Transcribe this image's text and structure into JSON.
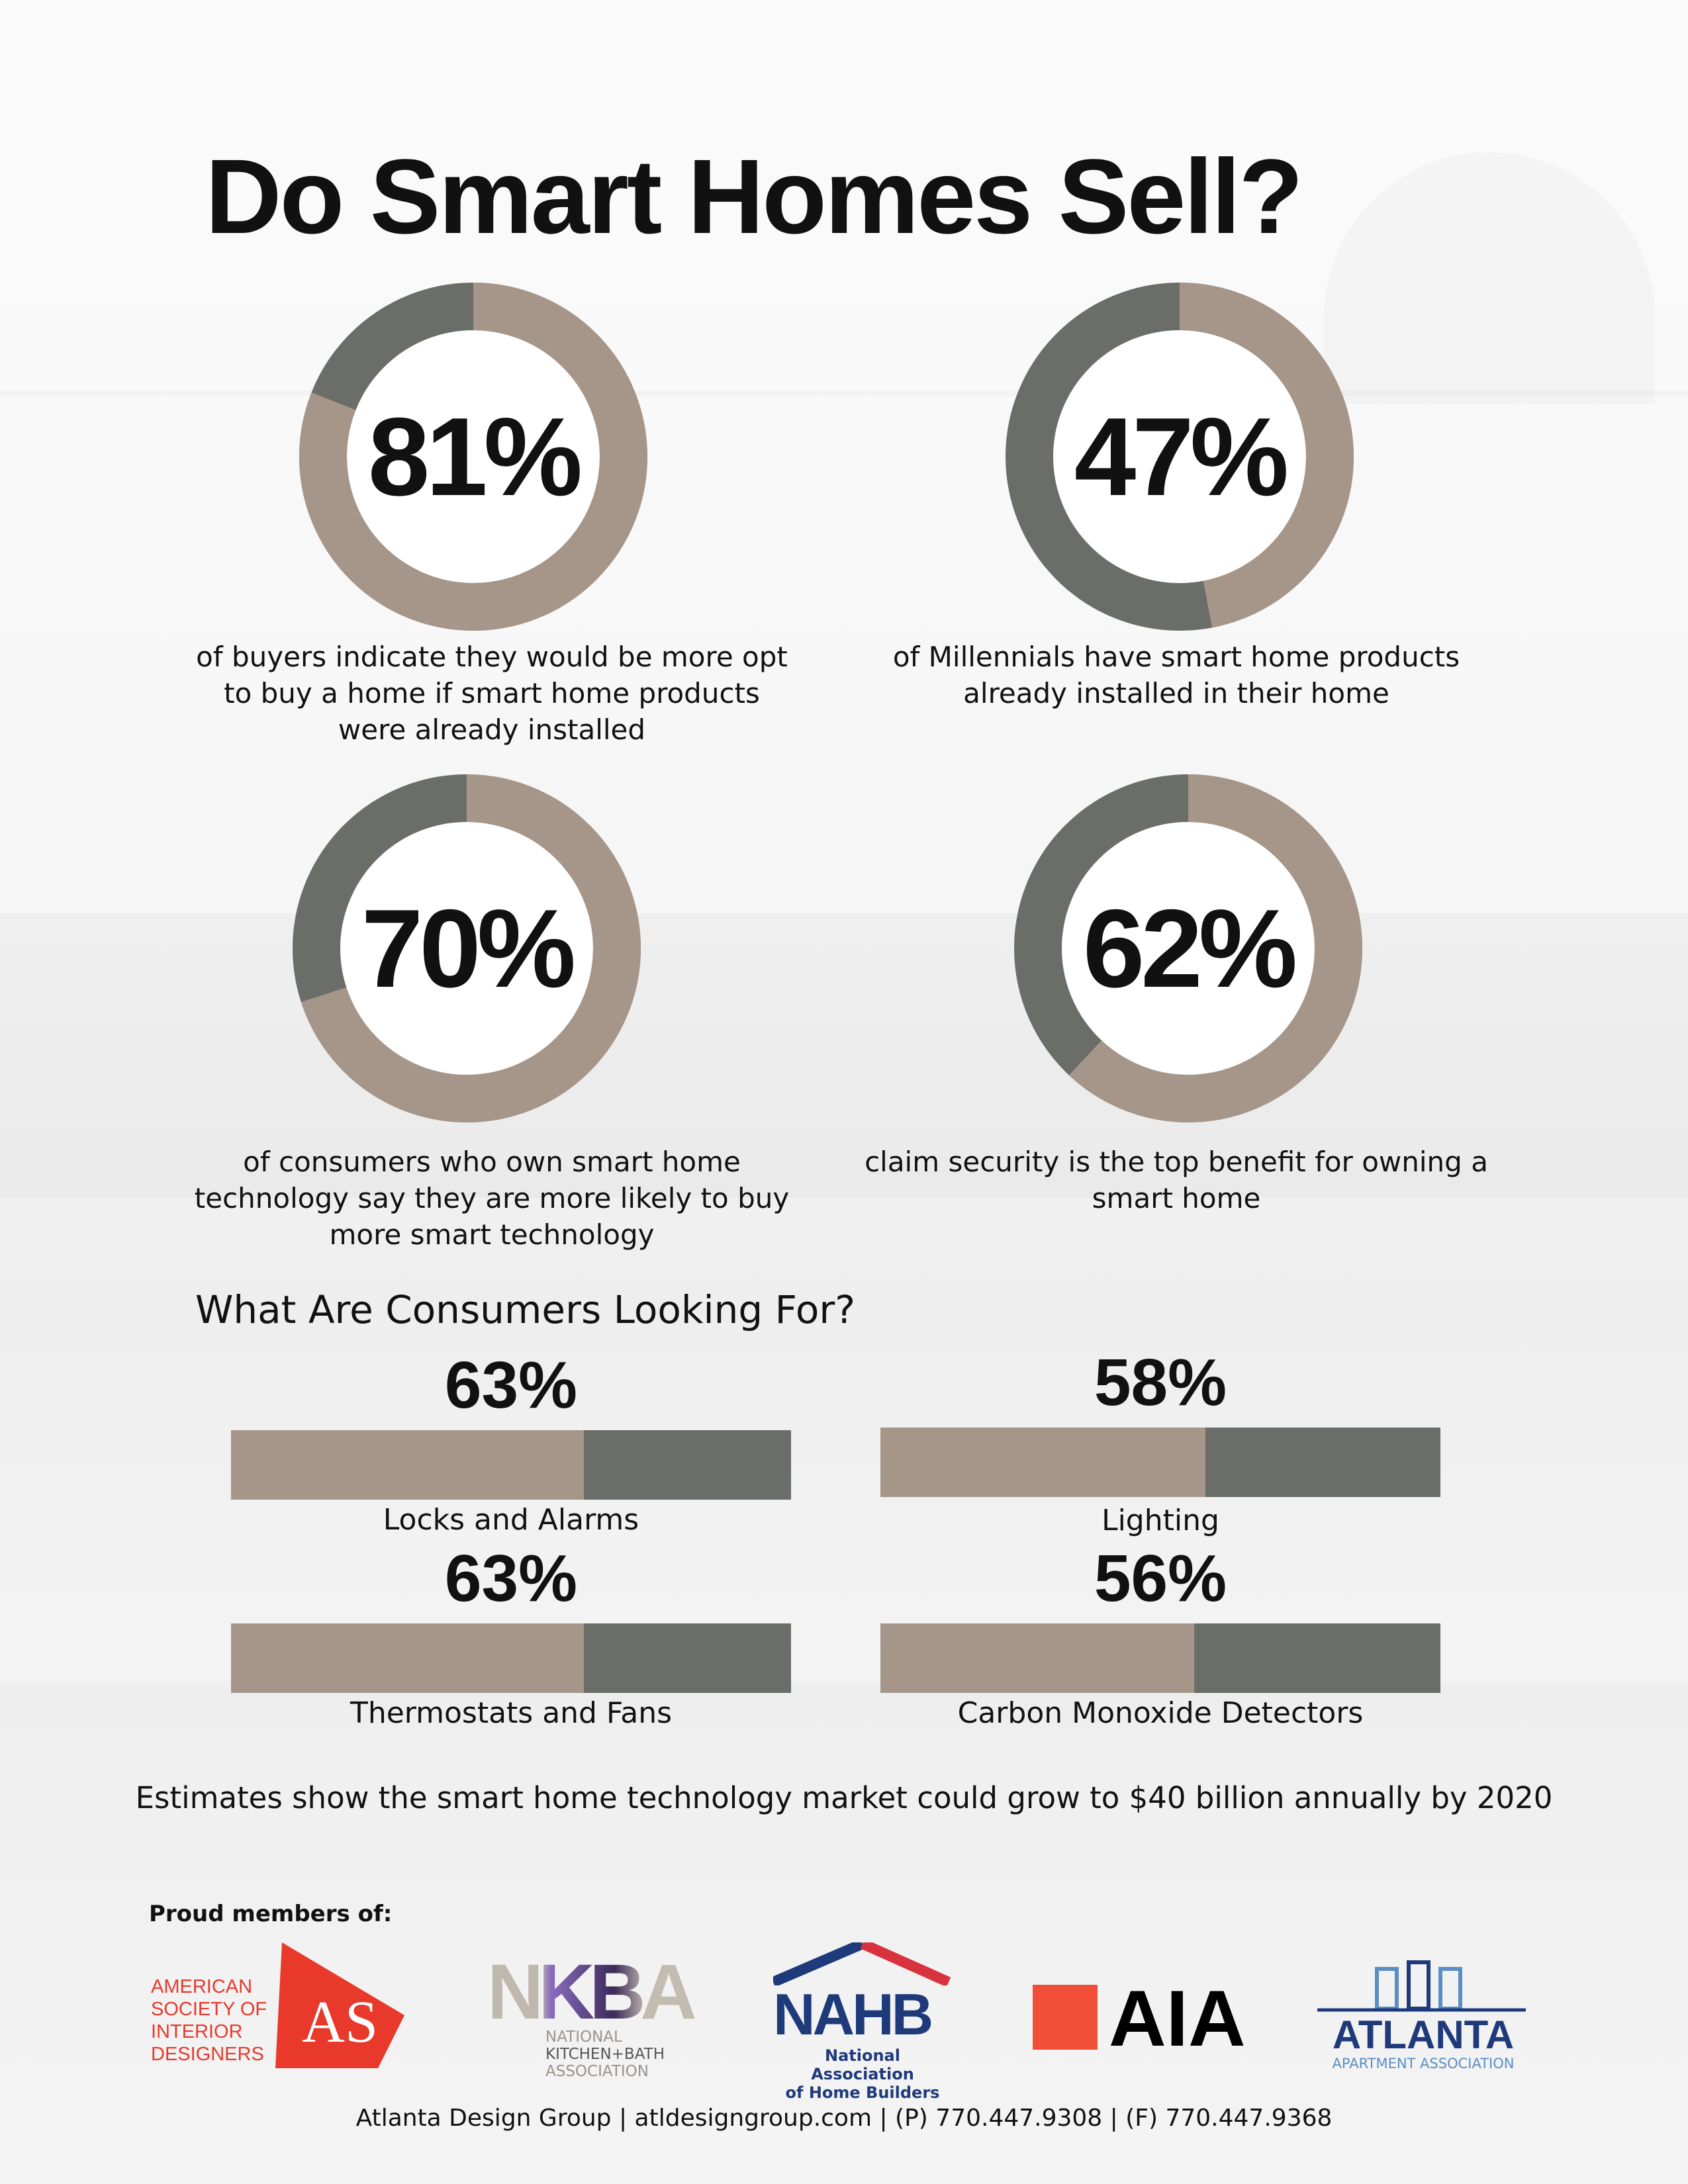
{
  "title": "Do Smart Homes Sell?",
  "colors": {
    "primary": "#a69689",
    "secondary": "#6b6d68"
  },
  "stats": [
    {
      "value": "81%",
      "caption": [
        "of buyers indicate they would be more opt",
        "to buy a home if smart home products",
        "were already installed"
      ]
    },
    {
      "value": "47%",
      "caption": [
        "of Millennials have smart home products",
        "already installed in their home"
      ]
    },
    {
      "value": "70%",
      "caption": [
        "of consumers who own smart home",
        "technology say they are more likely to buy",
        "more smart technology"
      ]
    },
    {
      "value": "62%",
      "caption": [
        "claim security is the top benefit for owning a",
        "smart home"
      ]
    }
  ],
  "subtitle": "What Are Consumers Looking For?",
  "bars": [
    {
      "value": "63%",
      "label": "Locks and Alarms"
    },
    {
      "value": "58%",
      "label": "Lighting"
    },
    {
      "value": "63%",
      "label": "Thermostats and Fans"
    },
    {
      "value": "56%",
      "label": "Carbon Monoxide Detectors"
    }
  ],
  "statement": "Estimates show the smart home technology market could grow to $40 billion annually by 2020",
  "members_label": "Proud members of:",
  "logos": {
    "asid": [
      "AMERICAN",
      "SOCIETY OF",
      "INTERIOR",
      "DESIGNERS",
      "ASID"
    ],
    "nkba": [
      "NKBA",
      "NATIONAL",
      "KITCHEN+BATH",
      "ASSOCIATION"
    ],
    "nahb": [
      "NAHB",
      "National Association",
      "of Home Builders"
    ],
    "aia": "AIA",
    "atlanta": [
      "ATLANTA",
      "APARTMENT ASSOCIATION"
    ]
  },
  "footer": "Atlanta Design Group  |  atldesigngroup.com  |  (P) 770.447.9308  |  (F) 770.447.9368",
  "chart_data": [
    {
      "type": "pie",
      "style": "donut",
      "categories": [
        "81%",
        "47%",
        "70%",
        "62%"
      ],
      "values": [
        81,
        47,
        70,
        62
      ],
      "max": 100,
      "colors": [
        "#a69689",
        "#6b6d68"
      ]
    },
    {
      "type": "bar",
      "orientation": "horizontal",
      "categories": [
        "Locks and Alarms",
        "Lighting",
        "Thermostats and Fans",
        "Carbon Monoxide Detectors"
      ],
      "values": [
        63,
        58,
        63,
        56
      ],
      "xlim": [
        0,
        100
      ],
      "colors": [
        "#a69689",
        "#6b6d68"
      ]
    }
  ]
}
